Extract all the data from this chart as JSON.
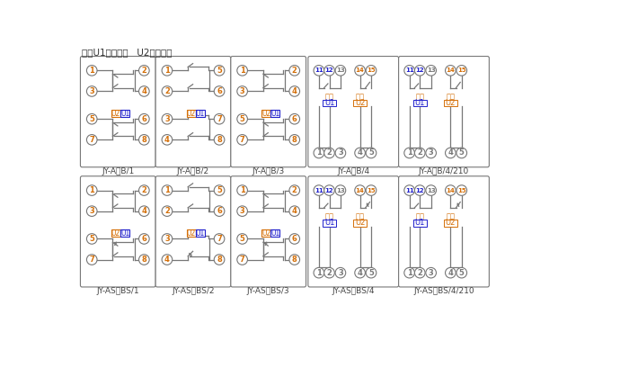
{
  "title_note": "注：U1辅助电源   U2整定电压",
  "bg_color": "#ffffff",
  "lc": "#777777",
  "nc_orange": "#d4700a",
  "u1_color": "#2222cc",
  "u2_color": "#d4700a",
  "label_color": "#555555",
  "row1_labels": [
    "JY-A、B/1",
    "JY-A、B/2",
    "JY-A、B/3",
    "JY-A、B/4",
    "JY-A、B/4/210"
  ],
  "row2_labels": [
    "JY-AS、BS/1",
    "JY-AS、BS/2",
    "JY-AS、BS/3",
    "JY-AS、BS/4",
    "JY-AS、BS/4/210"
  ]
}
